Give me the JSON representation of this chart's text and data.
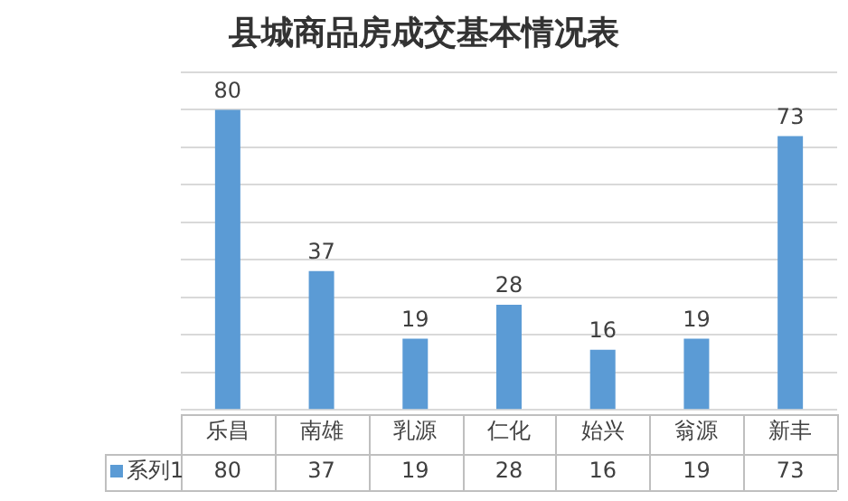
{
  "chart_data": {
    "type": "bar",
    "title": "县城商品房成交基本情况表",
    "categories": [
      "乐昌",
      "南雄",
      "乳源",
      "仁化",
      "始兴",
      "翁源",
      "新丰"
    ],
    "series": [
      {
        "name": "系列1",
        "color": "#5b9bd5",
        "values": [
          80,
          37,
          19,
          28,
          16,
          19,
          73
        ]
      }
    ],
    "ylim": [
      0,
      90
    ],
    "yticks": [
      {
        "value": 0,
        "label": null
      },
      {
        "value": 10,
        "label": null
      },
      {
        "value": 20,
        "label": null
      },
      {
        "value": 30,
        "label": null
      },
      {
        "value": 40,
        "label": null
      },
      {
        "value": 50,
        "label": null
      },
      {
        "value": 60,
        "label": null
      },
      {
        "value": 70,
        "label": null
      },
      {
        "value": 80,
        "label": null
      },
      {
        "value": 90,
        "label": null
      }
    ],
    "tick_labels": "x",
    "grid": "y",
    "data_labels": true,
    "annotations": [
      "80",
      "37",
      "19",
      "28",
      "16",
      "19",
      "73"
    ]
  }
}
